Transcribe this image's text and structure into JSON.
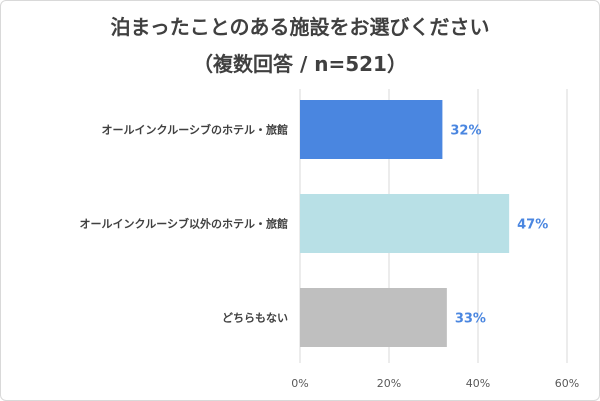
{
  "chart_data": {
    "type": "bar",
    "orientation": "horizontal",
    "title": "泊まったことのある施設をお選びください",
    "subtitle": "（複数回答 / n=521）",
    "categories": [
      "オールインクルーシブのホテル・旅館",
      "オールインクルーシブ以外のホテル・旅館",
      "どちらもない"
    ],
    "values": [
      32,
      47,
      33
    ],
    "value_labels": [
      "32%",
      "47%",
      "33%"
    ],
    "bar_colors": [
      "#4a86e0",
      "#b8e0e6",
      "#bfbfbf"
    ],
    "label_color": "#4a86e0",
    "xlim": [
      0,
      60
    ],
    "x_ticks": [
      0,
      20,
      40,
      60
    ],
    "x_tick_labels": [
      "0%",
      "20%",
      "40%",
      "60%"
    ],
    "grid": "vertical",
    "legend": "none"
  }
}
